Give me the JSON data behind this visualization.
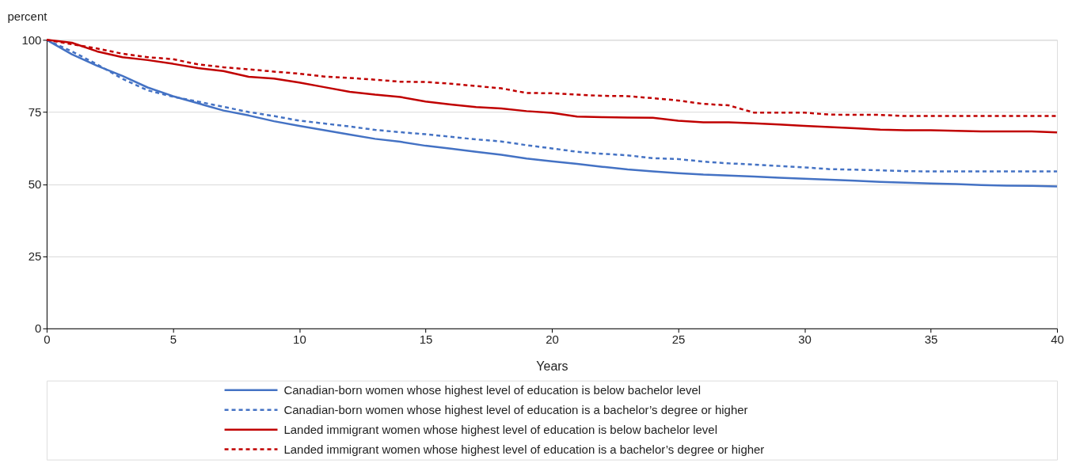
{
  "chart_data": {
    "type": "line",
    "xlabel": "Years",
    "ylabel": "percent",
    "x": [
      0,
      1,
      2,
      3,
      4,
      5,
      6,
      7,
      8,
      9,
      10,
      11,
      12,
      13,
      14,
      15,
      16,
      17,
      18,
      19,
      20,
      21,
      22,
      23,
      24,
      25,
      26,
      27,
      28,
      29,
      30,
      31,
      32,
      33,
      34,
      35,
      36,
      37,
      38,
      39,
      40
    ],
    "xlim": [
      0,
      40
    ],
    "xticks": [
      0,
      5,
      10,
      15,
      20,
      25,
      30,
      35,
      40
    ],
    "ylim": [
      0,
      100
    ],
    "yticks": [
      0,
      25,
      50,
      75,
      100
    ],
    "grid": "y",
    "legend": "bottom",
    "marker": "none",
    "series": [
      {
        "name": "Canadian-born women whose highest level of education is below bachelor level",
        "color": "#4472c4",
        "line_style": "solid",
        "values": [
          100,
          95,
          91,
          87.5,
          83.5,
          80.5,
          78,
          75.5,
          73.8,
          71.8,
          70.2,
          68.7,
          67.2,
          65.7,
          64.7,
          63.3,
          62.3,
          61.2,
          60.2,
          58.9,
          57.9,
          57,
          56,
          55.1,
          54.4,
          53.8,
          53.3,
          53,
          52.6,
          52.2,
          51.9,
          51.5,
          51.2,
          50.8,
          50.5,
          50.2,
          50,
          49.7,
          49.5,
          49.4,
          49.2
        ]
      },
      {
        "name": "Canadian-born women whose highest level of education is a bachelor’s degree or higher",
        "color": "#4472c4",
        "line_style": "dashed",
        "values": [
          100,
          96,
          91.5,
          86.5,
          82.5,
          80.3,
          78.6,
          76.8,
          75,
          73.6,
          72,
          71,
          70,
          68.8,
          68,
          67.3,
          66.4,
          65.5,
          64.8,
          63.5,
          62.4,
          61.2,
          60.5,
          60,
          59,
          58.7,
          57.8,
          57.2,
          56.8,
          56.3,
          55.8,
          55.2,
          55,
          54.8,
          54.5,
          54.4,
          54.4,
          54.4,
          54.4,
          54.4,
          54.4
        ]
      },
      {
        "name": "Landed immigrant women whose highest level of education is below bachelor level",
        "color": "#c00000",
        "line_style": "solid",
        "values": [
          100,
          99,
          96,
          94,
          93,
          91.7,
          90.2,
          89.2,
          87.2,
          86.6,
          85.2,
          83.6,
          82,
          81,
          80.2,
          78.6,
          77.6,
          76.7,
          76.2,
          75.3,
          74.7,
          73.4,
          73.2,
          73.1,
          73,
          72,
          71.4,
          71.4,
          71.1,
          70.7,
          70.2,
          69.8,
          69.4,
          68.9,
          68.7,
          68.7,
          68.5,
          68.3,
          68.3,
          68.3,
          67.9
        ]
      },
      {
        "name": "Landed immigrant women whose highest level of education is a bachelor’s degree or higher",
        "color": "#c00000",
        "line_style": "dashed",
        "values": [
          100,
          98.5,
          97,
          95.2,
          94,
          93.3,
          91.5,
          90.5,
          89.8,
          89,
          88.3,
          87.3,
          86.8,
          86.2,
          85.5,
          85.4,
          84.8,
          84,
          83.2,
          81.6,
          81.5,
          81,
          80.6,
          80.5,
          79.8,
          79,
          77.8,
          77.3,
          74.8,
          74.8,
          74.8,
          74.1,
          74,
          74,
          73.6,
          73.6,
          73.6,
          73.6,
          73.6,
          73.6,
          73.6
        ]
      }
    ]
  }
}
